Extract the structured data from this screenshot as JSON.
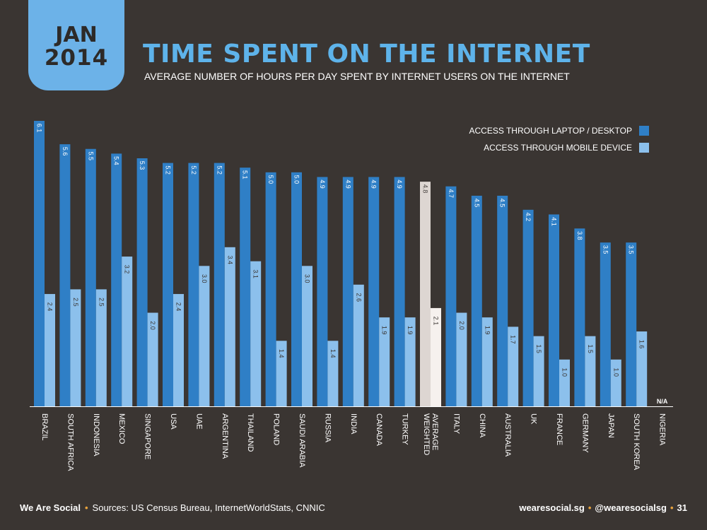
{
  "badge": {
    "month": "JAN",
    "year": "2014"
  },
  "header": {
    "title": "TIME SPENT ON THE INTERNET",
    "subtitle": "AVERAGE NUMBER OF HOURS PER DAY SPENT BY INTERNET USERS ON THE INTERNET"
  },
  "legend": {
    "desktop_label": "ACCESS THROUGH LAPTOP / DESKTOP",
    "mobile_label": "ACCESS THROUGH MOBILE DEVICE"
  },
  "colors": {
    "desktop": "#2f7fc6",
    "mobile": "#8cc0ec",
    "average_desktop": "#ddd6d2",
    "average_mobile": "#f6f1ee",
    "title": "#5eb3ea",
    "accent_dot": "#e8a33d",
    "background": "#3a3532"
  },
  "chart_data": {
    "type": "bar",
    "categories": [
      "BRAZIL",
      "SOUTH AFRICA",
      "INDONESIA",
      "MEXICO",
      "SINGAPORE",
      "USA",
      "UAE",
      "ARGENTINA",
      "THAILAND",
      "POLAND",
      "SAUDI ARABIA",
      "RUSSIA",
      "INDIA",
      "CANADA",
      "TURKEY",
      "WEIGHTED AVERAGE",
      "ITALY",
      "CHINA",
      "AUSTRALIA",
      "UK",
      "FRANCE",
      "GERMANY",
      "JAPAN",
      "SOUTH KOREA",
      "NIGERIA"
    ],
    "series": [
      {
        "name": "ACCESS THROUGH LAPTOP / DESKTOP",
        "values": [
          6.1,
          5.6,
          5.5,
          5.4,
          5.3,
          5.2,
          5.2,
          5.2,
          5.1,
          5.0,
          5.0,
          4.9,
          4.9,
          4.9,
          4.9,
          4.8,
          4.7,
          4.5,
          4.5,
          4.2,
          4.1,
          3.8,
          3.5,
          3.5,
          null
        ]
      },
      {
        "name": "ACCESS THROUGH MOBILE DEVICE",
        "values": [
          2.4,
          2.5,
          2.5,
          3.2,
          2.0,
          2.4,
          3.0,
          3.4,
          3.1,
          1.4,
          3.0,
          1.4,
          2.6,
          1.9,
          1.9,
          2.1,
          2.0,
          1.9,
          1.7,
          1.5,
          1.0,
          1.5,
          1.0,
          1.6,
          null
        ]
      }
    ],
    "highlight_category": "WEIGHTED AVERAGE",
    "missing_label": "N/A",
    "ylim": [
      0,
      6.8
    ],
    "grid": false,
    "legend_position": "top-right"
  },
  "footer": {
    "brand": "We Are Social",
    "sources": "Sources: US Census Bureau, InternetWorldStats, CNNIC",
    "site": "wearesocial.sg",
    "handle": "@wearesocialsg",
    "page_number": "31"
  }
}
